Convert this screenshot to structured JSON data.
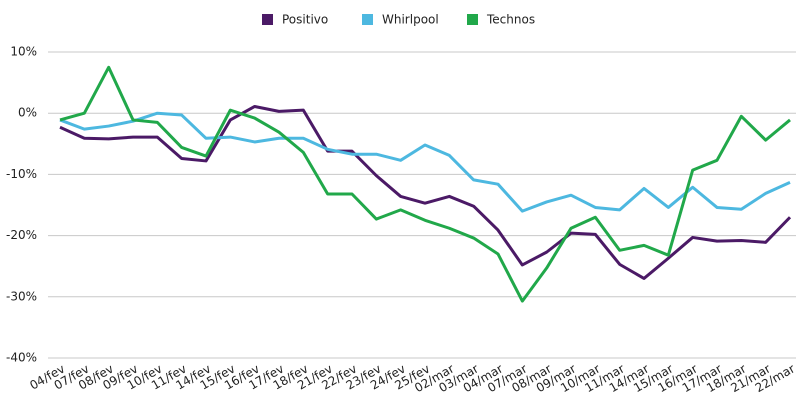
{
  "chart_data": {
    "type": "line",
    "categories": [
      "04/fev",
      "07/fev",
      "08/fev",
      "09/fev",
      "10/fev",
      "11/fev",
      "14/fev",
      "15/fev",
      "16/fev",
      "17/fev",
      "18/fev",
      "21/fev",
      "22/fev",
      "23/fev",
      "24/fev",
      "25/fev",
      "02/mar",
      "03/mar",
      "04/mar",
      "07/mar",
      "08/mar",
      "09/mar",
      "10/mar",
      "11/mar",
      "14/mar",
      "15/mar",
      "16/mar",
      "17/mar",
      "18/mar",
      "21/mar",
      "22/mar"
    ],
    "series": [
      {
        "name": "Positivo",
        "color": "#4b1a66",
        "values": [
          -2.3,
          -4.1,
          -4.2,
          -3.9,
          -3.9,
          -7.4,
          -7.8,
          -1.1,
          1.1,
          0.3,
          0.5,
          -6.2,
          -6.2,
          -10.2,
          -13.6,
          -14.7,
          -13.6,
          -15.2,
          -19.1,
          -24.8,
          -22.7,
          -19.6,
          -19.8,
          -24.7,
          -27.0,
          -23.7,
          -20.3,
          -20.9,
          -20.8,
          -21.1,
          -17.0
        ]
      },
      {
        "name": "Whirlpool",
        "color": "#4db8e0",
        "values": [
          -1.1,
          -2.6,
          -2.1,
          -1.3,
          0,
          -0.3,
          -4.1,
          -3.9,
          -4.7,
          -4.1,
          -4.1,
          -5.9,
          -6.7,
          -6.7,
          -7.7,
          -5.2,
          -6.9,
          -10.9,
          -11.6,
          -16.0,
          -14.5,
          -13.4,
          -15.4,
          -15.8,
          -12.3,
          -15.4,
          -12.1,
          -15.4,
          -15.7,
          -13.1,
          -11.3
        ]
      },
      {
        "name": "Technos",
        "color": "#21a84a",
        "values": [
          -1.1,
          0,
          7.5,
          -1.1,
          -1.5,
          -5.6,
          -7.0,
          0.5,
          -0.8,
          -3.1,
          -6.4,
          -13.2,
          -13.2,
          -17.3,
          -15.8,
          -17.5,
          -18.8,
          -20.4,
          -23.0,
          -30.7,
          -25.3,
          -18.8,
          -17.0,
          -22.4,
          -21.6,
          -23.2,
          -9.3,
          -7.7,
          -0.5,
          -4.4,
          -1.1
        ]
      }
    ],
    "ylim": [
      -40,
      10
    ],
    "yticks": [
      {
        "value": 10,
        "label": "10%"
      },
      {
        "value": 0,
        "label": "0%"
      },
      {
        "value": -10,
        "label": "-10%"
      },
      {
        "value": -20,
        "label": "-20%"
      },
      {
        "value": -30,
        "label": "-30%"
      },
      {
        "value": -40,
        "label": "-40%"
      }
    ],
    "grid": true,
    "legend": "top"
  }
}
